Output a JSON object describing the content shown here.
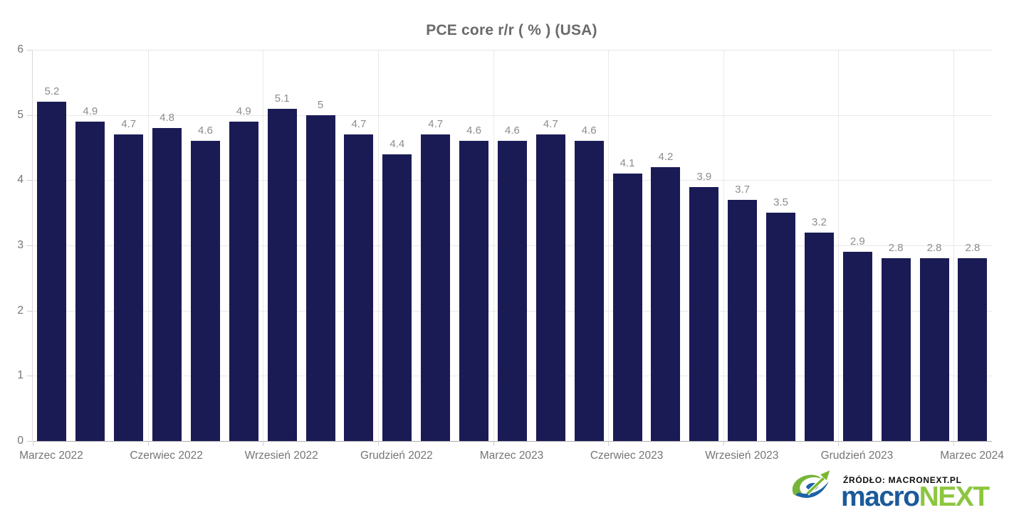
{
  "chart_data": {
    "type": "bar",
    "title": "PCE core r/r ( % ) (USA)",
    "values": [
      5.2,
      4.9,
      4.7,
      4.8,
      4.6,
      4.9,
      5.1,
      5.0,
      4.7,
      4.4,
      4.7,
      4.6,
      4.6,
      4.7,
      4.6,
      4.1,
      4.2,
      3.9,
      3.7,
      3.5,
      3.2,
      2.9,
      2.8,
      2.8,
      2.8
    ],
    "bar_labels": [
      "5.2",
      "4.9",
      "4.7",
      "4.8",
      "4.6",
      "4.9",
      "5.1",
      "5",
      "4.7",
      "4.4",
      "4.7",
      "4.6",
      "4.6",
      "4.7",
      "4.6",
      "4.1",
      "4.2",
      "3.9",
      "3.7",
      "3.5",
      "3.2",
      "2.9",
      "2.8",
      "2.8",
      "2.8"
    ],
    "x_tick_labels": [
      "Marzec 2022",
      "Czerwiec 2022",
      "Wrzesień 2022",
      "Grudzień 2022",
      "Marzec 2023",
      "Czerwiec 2023",
      "Wrzesień 2023",
      "Grudzień 2023",
      "Marzec 2024"
    ],
    "x_tick_positions": [
      0,
      3,
      6,
      9,
      12,
      15,
      18,
      21,
      24
    ],
    "y_ticks": [
      "0",
      "1",
      "2",
      "3",
      "4",
      "5",
      "6"
    ],
    "ylim": [
      0,
      6
    ],
    "grid": true,
    "legend": "none",
    "bar_color": "#1a1b55",
    "value_label_color": "#8c8c8c",
    "axis_label_color": "#757575"
  },
  "footer": {
    "source_label": "ŹRÓDŁO: MACRONEXT.PL",
    "brand": {
      "macro": "macro",
      "next": "NEXT"
    },
    "brand_colors": {
      "macro": "#1b5a9b",
      "next": "#8cc63f"
    }
  }
}
